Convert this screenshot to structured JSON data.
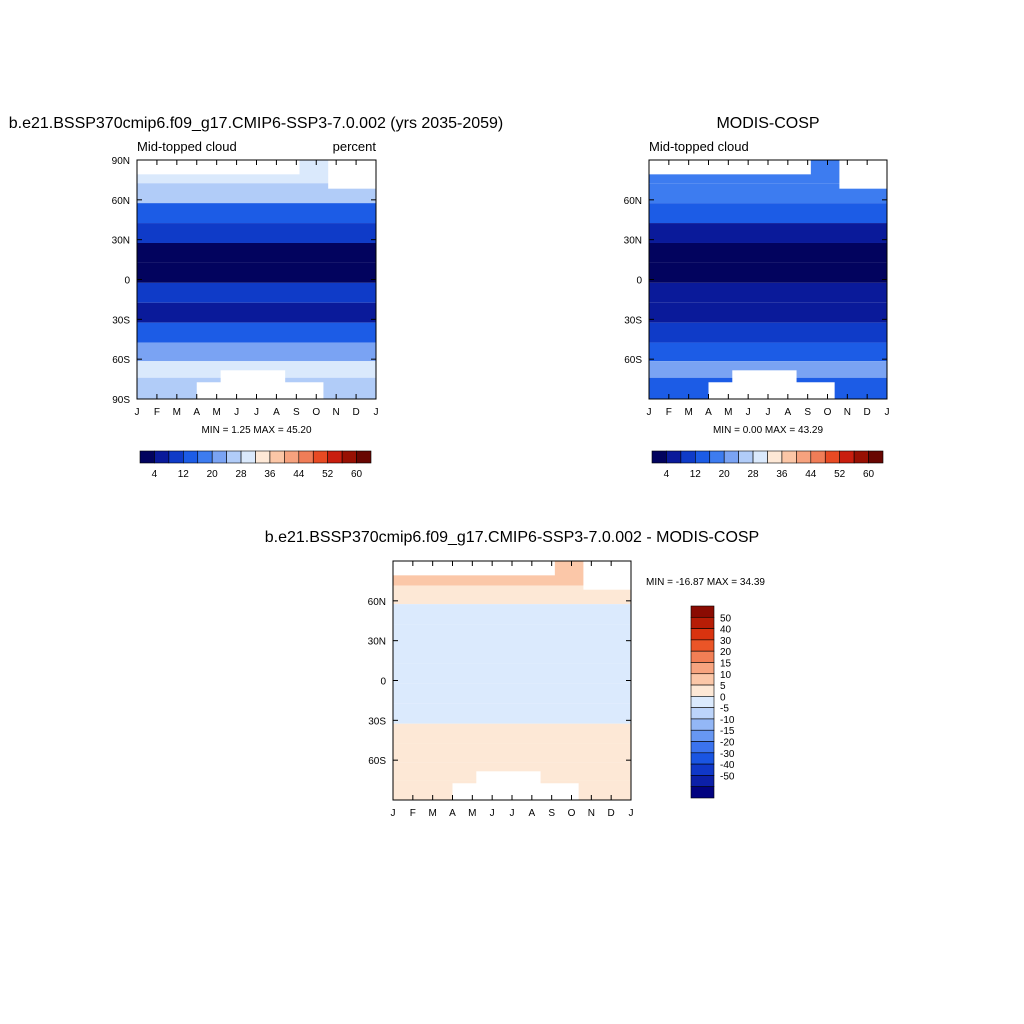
{
  "chart_data": [
    {
      "type": "heatmap",
      "title": "b.e21.BSSP370cmip6.f09_g17.CMIP6-SSP3-7.0.002 (yrs 2035-2059)",
      "left_label": "Mid-topped cloud",
      "right_label": "percent",
      "minmax": "MIN =   1.25 MAX =  45.20",
      "x_ticks": [
        "J",
        "F",
        "M",
        "A",
        "M",
        "J",
        "J",
        "A",
        "S",
        "O",
        "N",
        "D",
        "J"
      ],
      "y_ticks": [
        "90N",
        "60N",
        "30N",
        "0",
        "30S",
        "60S",
        "90S"
      ],
      "ylim": [
        -90,
        90
      ],
      "colorbar": {
        "colors": [
          "#02035e",
          "#0a1a9a",
          "#0f3bc8",
          "#1c5ce6",
          "#3d7cf0",
          "#7aa3f3",
          "#b1ccf8",
          "#dae9fc",
          "#fde8d6",
          "#fbc6a6",
          "#f6a27e",
          "#f07d57",
          "#e84a23",
          "#c91e0e",
          "#981003",
          "#680602"
        ],
        "labels": [
          "4",
          "12",
          "20",
          "28",
          "36",
          "44",
          "52",
          "60"
        ]
      },
      "bands": [
        {
          "lat": 80,
          "value": 28
        },
        {
          "lat": 65,
          "value": 24
        },
        {
          "lat": 50,
          "value": 15
        },
        {
          "lat": 35,
          "value": 8
        },
        {
          "lat": 20,
          "value": 2
        },
        {
          "lat": 5,
          "value": 2
        },
        {
          "lat": -10,
          "value": 8
        },
        {
          "lat": -25,
          "value": 5
        },
        {
          "lat": -40,
          "value": 12
        },
        {
          "lat": -55,
          "value": 22
        },
        {
          "lat": -68,
          "value": 30
        },
        {
          "lat": -80,
          "value": 25
        }
      ]
    },
    {
      "type": "heatmap",
      "title": "MODIS-COSP",
      "left_label": "Mid-topped cloud",
      "right_label": "",
      "minmax": "MIN =   0.00 MAX =  43.29",
      "x_ticks": [
        "J",
        "F",
        "M",
        "A",
        "M",
        "J",
        "J",
        "A",
        "S",
        "O",
        "N",
        "D",
        "J"
      ],
      "y_ticks": [
        "60N",
        "30N",
        "0",
        "30S",
        "60S"
      ],
      "ylim": [
        -90,
        90
      ],
      "colorbar": {
        "colors": [
          "#02035e",
          "#0a1a9a",
          "#0f3bc8",
          "#1c5ce6",
          "#3d7cf0",
          "#7aa3f3",
          "#b1ccf8",
          "#dae9fc",
          "#fde8d6",
          "#fbc6a6",
          "#f6a27e",
          "#f07d57",
          "#e84a23",
          "#c91e0e",
          "#981003",
          "#680602"
        ],
        "labels": [
          "4",
          "12",
          "20",
          "28",
          "36",
          "44",
          "52",
          "60"
        ]
      },
      "bands": [
        {
          "lat": 80,
          "value": 18
        },
        {
          "lat": 65,
          "value": 16
        },
        {
          "lat": 50,
          "value": 12
        },
        {
          "lat": 35,
          "value": 6
        },
        {
          "lat": 20,
          "value": 2
        },
        {
          "lat": 5,
          "value": 2
        },
        {
          "lat": -10,
          "value": 6
        },
        {
          "lat": -25,
          "value": 7
        },
        {
          "lat": -40,
          "value": 9
        },
        {
          "lat": -55,
          "value": 14
        },
        {
          "lat": -68,
          "value": 20
        },
        {
          "lat": -80,
          "value": 14
        }
      ]
    },
    {
      "type": "heatmap",
      "title": "b.e21.BSSP370cmip6.f09_g17.CMIP6-SSP3-7.0.002 - MODIS-COSP",
      "minmax": "MIN = -16.87 MAX =  34.39",
      "x_ticks": [
        "J",
        "F",
        "M",
        "A",
        "M",
        "J",
        "J",
        "A",
        "S",
        "O",
        "N",
        "D",
        "J"
      ],
      "y_ticks": [
        "60N",
        "30N",
        "0",
        "30S",
        "60S"
      ],
      "ylim": [
        -90,
        90
      ],
      "colorbar": {
        "colors": [
          "#020380",
          "#0c20a8",
          "#1038c8",
          "#1a55e2",
          "#3b73ee",
          "#6797f2",
          "#93b7f6",
          "#bcd4fa",
          "#dbeafd",
          "#fde8d6",
          "#fbc7a8",
          "#f7a47f",
          "#f27f55",
          "#eb5527",
          "#d9330f",
          "#b71d06",
          "#8a0b02"
        ],
        "labels": [
          "50",
          "40",
          "30",
          "20",
          "15",
          "10",
          "5",
          "0",
          "-5",
          "-10",
          "-15",
          "-20",
          "-30",
          "-40",
          "-50"
        ]
      },
      "bands": [
        {
          "lat": 78,
          "value": 12
        },
        {
          "lat": 65,
          "value": 6
        },
        {
          "lat": 50,
          "value": 2
        },
        {
          "lat": 35,
          "value": -2
        },
        {
          "lat": 20,
          "value": -2
        },
        {
          "lat": 5,
          "value": 2
        },
        {
          "lat": -10,
          "value": 2
        },
        {
          "lat": -25,
          "value": -2
        },
        {
          "lat": -40,
          "value": 5
        },
        {
          "lat": -55,
          "value": 8
        },
        {
          "lat": -68,
          "value": 4
        },
        {
          "lat": -82,
          "value": 6
        }
      ]
    }
  ]
}
